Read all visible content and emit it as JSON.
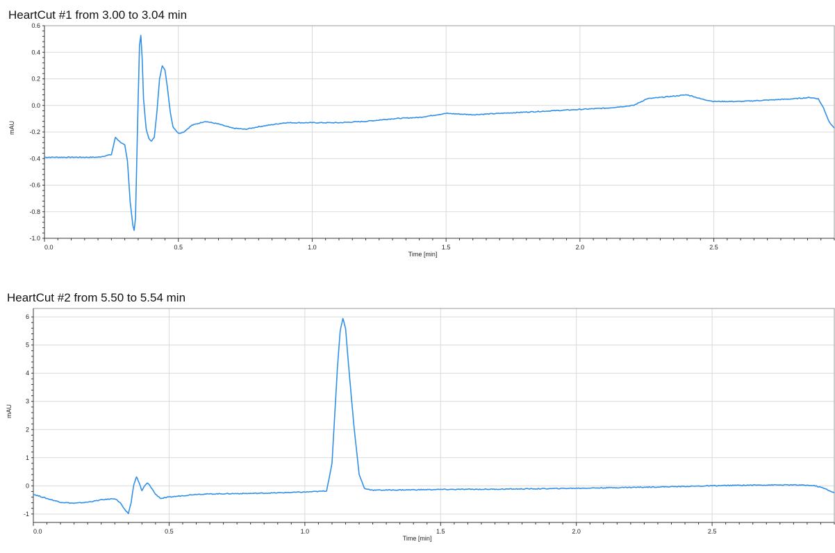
{
  "chart_data": [
    {
      "type": "line",
      "title": "HeartCut #1 from 3.00 to 3.04 min",
      "xlabel": "Time [min]",
      "ylabel": "mAU",
      "xlim": [
        0.0,
        2.95
      ],
      "ylim": [
        -1.0,
        0.6
      ],
      "xticks": [
        "0.0",
        "0.5",
        "1.0",
        "1.5",
        "2.0",
        "2.5"
      ],
      "yticks": [
        "0.6",
        "0.4",
        "0.2",
        "0.0",
        "-0.2",
        "-0.4",
        "-0.6",
        "-0.8",
        "-1.0"
      ],
      "grid": true,
      "color": "#2f8fe8",
      "series": [
        {
          "x": [
            0.0,
            0.1,
            0.2,
            0.25,
            0.265,
            0.28,
            0.3,
            0.31,
            0.32,
            0.33,
            0.335,
            0.34,
            0.345,
            0.35,
            0.355,
            0.36,
            0.365,
            0.37,
            0.38,
            0.39,
            0.4,
            0.41,
            0.42,
            0.43,
            0.44,
            0.45,
            0.46,
            0.47,
            0.48,
            0.5,
            0.52,
            0.55,
            0.6,
            0.65,
            0.7,
            0.75,
            0.8,
            0.9,
            1.0,
            1.1,
            1.2,
            1.3,
            1.4,
            1.5,
            1.6,
            1.7,
            1.8,
            1.9,
            2.0,
            2.1,
            2.2,
            2.25,
            2.3,
            2.35,
            2.4,
            2.42,
            2.45,
            2.5,
            2.6,
            2.7,
            2.8,
            2.86,
            2.89,
            2.91,
            2.93,
            2.95
          ],
          "y": [
            -0.39,
            -0.39,
            -0.39,
            -0.37,
            -0.24,
            -0.27,
            -0.3,
            -0.42,
            -0.72,
            -0.9,
            -0.94,
            -0.85,
            -0.4,
            0.05,
            0.45,
            0.53,
            0.35,
            0.05,
            -0.18,
            -0.25,
            -0.27,
            -0.24,
            -0.05,
            0.2,
            0.3,
            0.27,
            0.12,
            -0.05,
            -0.16,
            -0.21,
            -0.2,
            -0.15,
            -0.12,
            -0.14,
            -0.17,
            -0.18,
            -0.16,
            -0.13,
            -0.13,
            -0.13,
            -0.12,
            -0.1,
            -0.09,
            -0.06,
            -0.07,
            -0.06,
            -0.05,
            -0.04,
            -0.03,
            -0.02,
            0.0,
            0.05,
            0.06,
            0.07,
            0.08,
            0.07,
            0.05,
            0.03,
            0.03,
            0.04,
            0.05,
            0.06,
            0.05,
            -0.02,
            -0.12,
            -0.17
          ]
        }
      ]
    },
    {
      "type": "line",
      "title": "HeartCut #2 from 5.50 to 5.54 min",
      "xlabel": "Time [min]",
      "ylabel": "mAU",
      "xlim": [
        0.0,
        2.95
      ],
      "ylim": [
        -1.3,
        6.3
      ],
      "xticks": [
        "0.0",
        "0.5",
        "1.0",
        "1.5",
        "2.0",
        "2.5"
      ],
      "yticks": [
        "6",
        "5",
        "4",
        "3",
        "2",
        "1",
        "0",
        "-1"
      ],
      "grid": true,
      "color": "#2f8fe8",
      "series": [
        {
          "x": [
            0.0,
            0.05,
            0.1,
            0.15,
            0.2,
            0.25,
            0.3,
            0.32,
            0.34,
            0.35,
            0.36,
            0.37,
            0.38,
            0.39,
            0.4,
            0.41,
            0.42,
            0.43,
            0.45,
            0.47,
            0.5,
            0.6,
            0.7,
            0.8,
            0.9,
            1.0,
            1.05,
            1.08,
            1.1,
            1.12,
            1.13,
            1.14,
            1.15,
            1.16,
            1.18,
            1.2,
            1.22,
            1.25,
            1.3,
            1.5,
            1.7,
            1.9,
            2.1,
            2.3,
            2.5,
            2.6,
            2.7,
            2.8,
            2.85,
            2.88,
            2.9,
            2.92,
            2.95
          ],
          "y": [
            -0.3,
            -0.45,
            -0.58,
            -0.62,
            -0.58,
            -0.5,
            -0.45,
            -0.6,
            -0.9,
            -0.98,
            -0.6,
            0.05,
            0.32,
            0.1,
            -0.18,
            0.0,
            0.1,
            0.0,
            -0.3,
            -0.45,
            -0.4,
            -0.3,
            -0.28,
            -0.27,
            -0.25,
            -0.22,
            -0.2,
            -0.18,
            0.8,
            4.2,
            5.5,
            5.95,
            5.6,
            4.4,
            2.2,
            0.4,
            -0.1,
            -0.15,
            -0.15,
            -0.13,
            -0.12,
            -0.1,
            -0.07,
            -0.04,
            0.0,
            0.02,
            0.03,
            0.03,
            0.02,
            0.0,
            -0.05,
            -0.12,
            -0.25
          ]
        }
      ]
    }
  ]
}
